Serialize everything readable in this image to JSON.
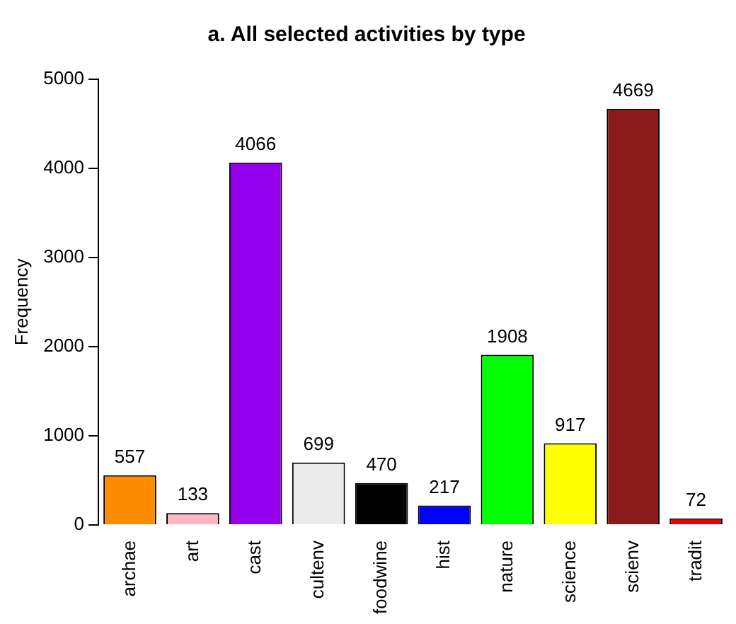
{
  "chart_data": {
    "type": "bar",
    "title": "a. All selected activities by type",
    "ylabel": "Frequency",
    "categories": [
      "archae",
      "art",
      "cast",
      "cultenv",
      "foodwine",
      "hist",
      "nature",
      "science",
      "scienv",
      "tradit"
    ],
    "values": [
      557,
      133,
      4066,
      699,
      470,
      217,
      1908,
      917,
      4669,
      72
    ],
    "colors": [
      "#ff8c00",
      "#ffb6c1",
      "#9400ee",
      "#ebebeb",
      "#000000",
      "#0000ff",
      "#00ff00",
      "#ffff00",
      "#8b1a1a",
      "#ee0000"
    ],
    "ylim": [
      0,
      5000
    ],
    "yticks": [
      0,
      1000,
      2000,
      3000,
      4000,
      5000
    ],
    "grid": false,
    "legend": false,
    "data_labels": true
  }
}
